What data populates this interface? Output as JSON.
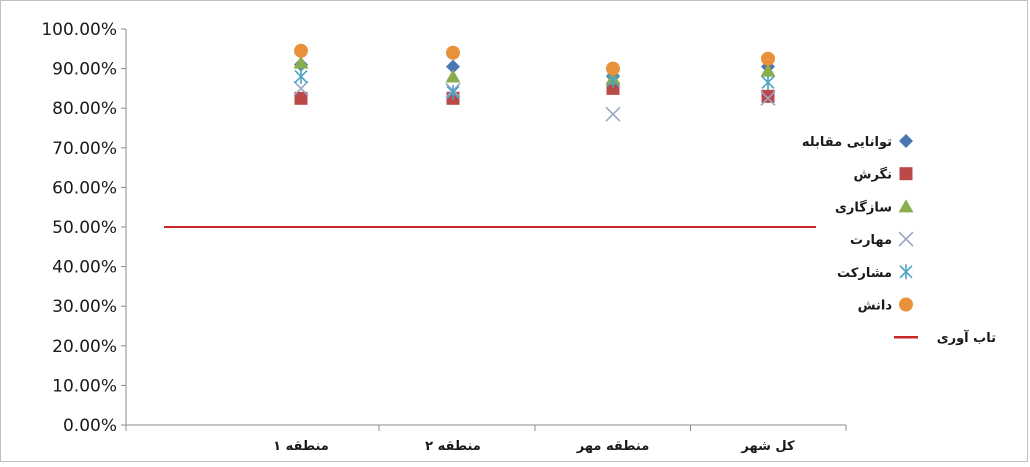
{
  "chart_data": {
    "type": "scatter",
    "categories": [
      "منطقه ۱",
      "منطقه ۲",
      "منطقه مهر",
      "کل شهر"
    ],
    "ylim": [
      0,
      1.0
    ],
    "y_ticks": [
      0,
      0.1,
      0.2,
      0.3,
      0.4,
      0.5,
      0.6,
      0.7,
      0.8,
      0.9,
      1.0
    ],
    "y_tick_labels": [
      "0.00%",
      "10.00%",
      "20.00%",
      "30.00%",
      "40.00%",
      "50.00%",
      "60.00%",
      "70.00%",
      "80.00%",
      "90.00%",
      "100.00%"
    ],
    "grid": false,
    "legend_position": "right",
    "series": [
      {
        "name": "توانایی مقابله",
        "marker": "diamond",
        "color": "#4a77b4",
        "values": [
          0.91,
          0.905,
          0.88,
          0.905
        ]
      },
      {
        "name": "نگرش",
        "marker": "square",
        "color": "#b94a48",
        "values": [
          0.825,
          0.825,
          0.85,
          0.83
        ]
      },
      {
        "name": "سازگاری",
        "marker": "triangle",
        "color": "#8aad4e",
        "values": [
          0.915,
          0.88,
          0.875,
          0.895
        ]
      },
      {
        "name": "مهارت",
        "marker": "x",
        "color": "#9aa6c8",
        "values": [
          0.85,
          0.845,
          0.785,
          0.825
        ]
      },
      {
        "name": "مشارکت",
        "marker": "star",
        "color": "#4aa4c0",
        "values": [
          0.88,
          0.84,
          0.87,
          0.865
        ]
      },
      {
        "name": "دانش",
        "marker": "circle",
        "color": "#e8913a",
        "values": [
          0.945,
          0.94,
          0.9,
          0.925
        ]
      }
    ],
    "reference_line": {
      "name": "تاب آوری",
      "value": 0.5,
      "color": "#c8282a"
    }
  }
}
